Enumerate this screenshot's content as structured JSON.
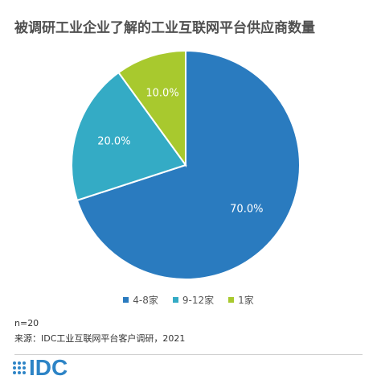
{
  "title": "被调研工业企业了解的工业互联网平台供应商数量",
  "chart_data": {
    "type": "pie",
    "title": "被调研工业企业了解的工业互联网平台供应商数量",
    "slices": [
      {
        "label": "4-8家",
        "value": 70.0,
        "display": "70.0%",
        "color": "#2a7bbf"
      },
      {
        "label": "9-12家",
        "value": 20.0,
        "display": "20.0%",
        "color": "#34abc5"
      },
      {
        "label": "1家",
        "value": 10.0,
        "display": "10.0%",
        "color": "#a8c92e"
      }
    ],
    "legend_position": "bottom"
  },
  "notes": {
    "sample": "n=20",
    "source": "来源：IDC工业互联网平台客户调研，2021"
  },
  "logo": {
    "text": "IDC",
    "color": "#2d84c6"
  }
}
